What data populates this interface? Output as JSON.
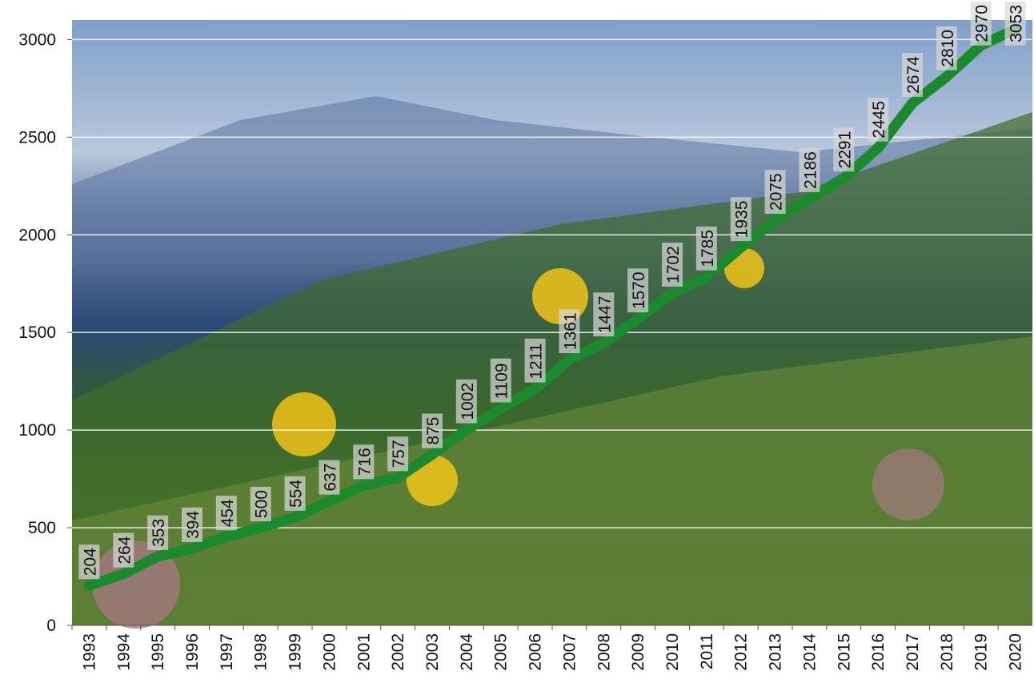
{
  "chart_data": {
    "type": "line",
    "categories": [
      "1993",
      "1994",
      "1995",
      "1996",
      "1997",
      "1998",
      "1999",
      "2000",
      "2001",
      "2002",
      "2003",
      "2004",
      "2005",
      "2006",
      "2007",
      "2008",
      "2009",
      "2010",
      "2011",
      "2012",
      "2013",
      "2014",
      "2015",
      "2016",
      "2017",
      "2018",
      "2019",
      "2020"
    ],
    "values": [
      204,
      264,
      353,
      394,
      454,
      500,
      554,
      637,
      716,
      757,
      875,
      1002,
      1109,
      1211,
      1361,
      1447,
      1570,
      1702,
      1785,
      1935,
      2075,
      2186,
      2291,
      2445,
      2674,
      2810,
      2970,
      3053
    ],
    "color": "#1a8a2c",
    "ylim": [
      0,
      3100
    ],
    "yticks": [
      0,
      500,
      1000,
      1500,
      2000,
      2500,
      3000
    ],
    "grid": true
  }
}
